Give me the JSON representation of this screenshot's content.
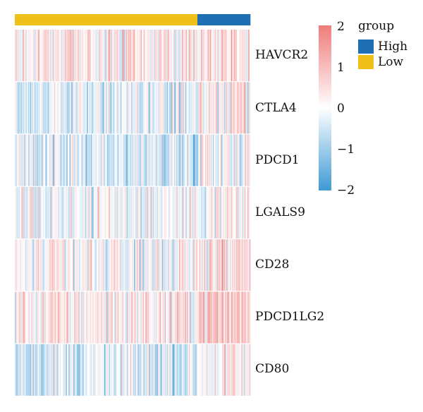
{
  "chart_data": {
    "type": "heatmap",
    "rows": [
      "HAVCR2",
      "CTLA4",
      "PDCD1",
      "LGALS9",
      "CD28",
      "PDCD1LG2",
      "CD80"
    ],
    "row_mean_bias": [
      0.35,
      -0.25,
      -0.35,
      0.0,
      0.05,
      0.35,
      -0.3
    ],
    "column_groups": [
      {
        "name": "Low",
        "count": 190
      },
      {
        "name": "High",
        "count": 55
      }
    ],
    "color_scale": {
      "min": -2,
      "max": 2,
      "ticks": [
        "2",
        "1",
        "0",
        "−1",
        "−2"
      ],
      "colors": {
        "low": "#3e9ad5",
        "mid": "#ffffff",
        "high": "#ee7c7a"
      }
    },
    "legend": {
      "title": "group",
      "items": [
        {
          "label": "High",
          "color": "#1f6fb5"
        },
        {
          "label": "Low",
          "color": "#efbf1a"
        }
      ]
    }
  }
}
